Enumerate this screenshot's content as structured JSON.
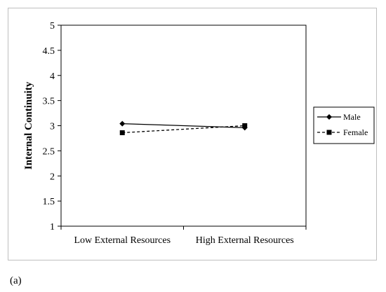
{
  "chart_data": {
    "type": "line",
    "categories": [
      "Low External Resources",
      "High External Resources"
    ],
    "series": [
      {
        "name": "Male",
        "values": [
          3.04,
          2.96
        ],
        "marker": "diamond",
        "line_style": "solid",
        "color": "#000000"
      },
      {
        "name": "Female",
        "values": [
          2.86,
          3.0
        ],
        "marker": "square",
        "line_style": "dashed",
        "color": "#000000"
      }
    ],
    "ylabel": "Internal Continuity",
    "xlabel": "",
    "ylim": [
      1,
      5
    ],
    "yticks": [
      "1",
      "1.5",
      "2",
      "2.5",
      "3",
      "3.5",
      "4",
      "4.5",
      "5"
    ],
    "grid": false,
    "legend_position": "right"
  },
  "caption": "(a)"
}
